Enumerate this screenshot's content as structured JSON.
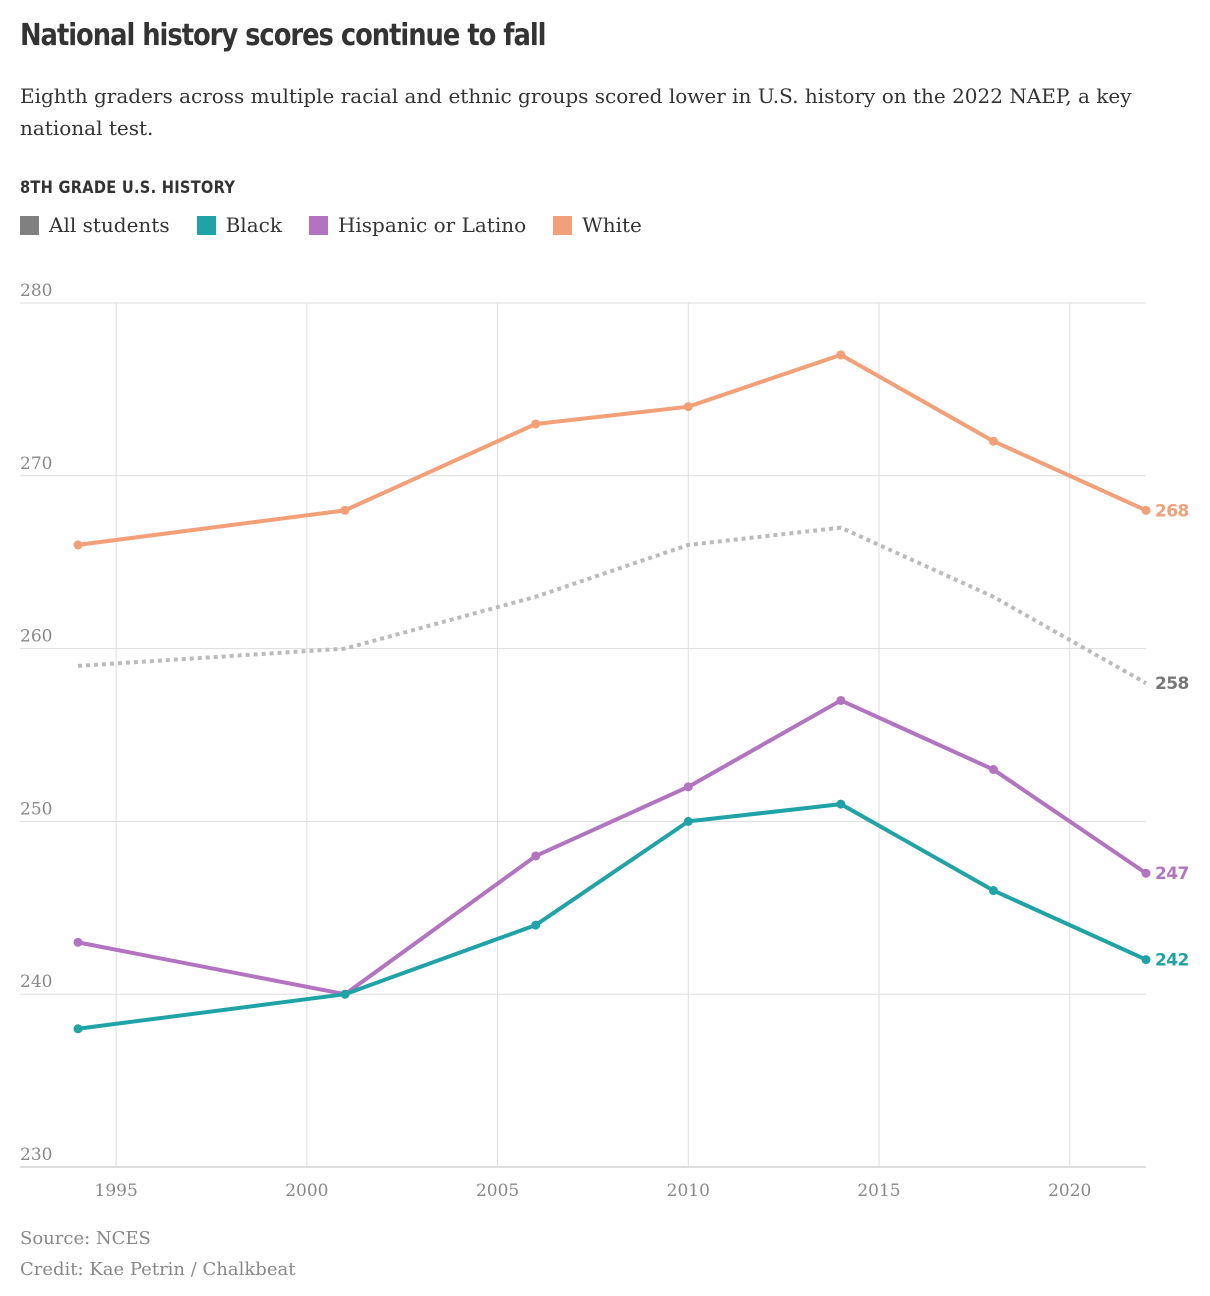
{
  "header": {
    "title": "National history scores continue to fall",
    "subtitle": "Eighth graders across multiple racial and ethnic groups scored lower in U.S. history on the 2022 NAEP, a key national test.",
    "chart_label": "8TH GRADE U.S. HISTORY"
  },
  "legend": [
    {
      "label": "All students",
      "color": "#808080"
    },
    {
      "label": "Black",
      "color": "#1fa3a6"
    },
    {
      "label": "Hispanic or Latino",
      "color": "#b274c1"
    },
    {
      "label": "White",
      "color": "#f39f78"
    }
  ],
  "footer": {
    "source": "Source: NCES",
    "credit": "Credit: Kae Petrin / Chalkbeat"
  },
  "chart_data": {
    "type": "line",
    "title": "National history scores continue to fall",
    "xlabel": "",
    "ylabel": "",
    "xlim": [
      1994,
      2022
    ],
    "ylim": [
      230,
      280
    ],
    "x_ticks": [
      1995,
      2000,
      2005,
      2010,
      2015,
      2020
    ],
    "y_ticks": [
      230,
      240,
      250,
      260,
      270,
      280
    ],
    "grid": true,
    "x": [
      1994,
      2001,
      2006,
      2010,
      2014,
      2018,
      2022
    ],
    "series": [
      {
        "name": "All students",
        "color": "#bbbbbb",
        "label_color": "#777777",
        "dashed": true,
        "markers": false,
        "end_label": "258",
        "values": [
          259,
          260,
          263,
          266,
          267,
          263,
          258
        ]
      },
      {
        "name": "White",
        "color": "#f39f78",
        "label_color": "#f39f78",
        "dashed": false,
        "markers": true,
        "end_label": "268",
        "values": [
          266,
          268,
          273,
          274,
          277,
          272,
          268
        ]
      },
      {
        "name": "Hispanic or Latino",
        "color": "#b274c1",
        "label_color": "#b274c1",
        "dashed": false,
        "markers": true,
        "end_label": "247",
        "values": [
          243,
          240,
          248,
          252,
          257,
          253,
          247
        ]
      },
      {
        "name": "Black",
        "color": "#1fa3a6",
        "label_color": "#1fa3a6",
        "dashed": false,
        "markers": true,
        "end_label": "242",
        "values": [
          238,
          240,
          244,
          250,
          251,
          246,
          242
        ]
      }
    ]
  }
}
